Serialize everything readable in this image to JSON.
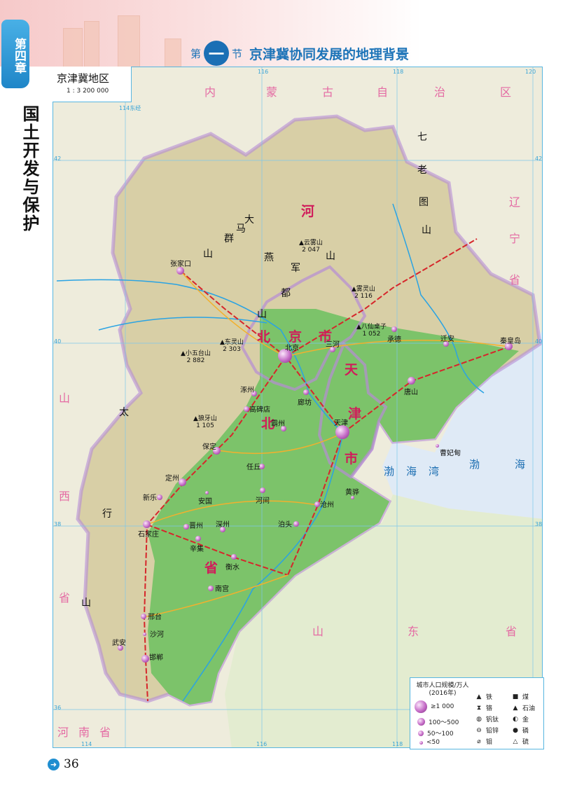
{
  "sidebar": {
    "chapter": "第四章",
    "chapter_title": "国土开发与保护"
  },
  "section": {
    "prefix": "第",
    "number": "一",
    "suffix": "节",
    "title": "京津冀协同发展的地理背景"
  },
  "map": {
    "title": "京津冀地区",
    "scale": "1 : 3 200 000",
    "colors": {
      "hebei_plain": "#7cc36a",
      "mountain": "#d8cfa6",
      "sea": "#dfeaf6",
      "outside": "#eeecdc",
      "border": "#b68cd6",
      "river": "#2aa3e3",
      "railway": "#d6262b",
      "road": "#f2b02e"
    },
    "grid_labels": {
      "lon114": "114东经",
      "lon116": "116",
      "lon118": "118",
      "lon120": "120",
      "lat42": "42",
      "lat40": "40",
      "lat38": "38",
      "lat36": "36",
      "lat42r": "42",
      "lat40r": "40",
      "lat38r": "38",
      "lat36r": "36",
      "lon114b": "114",
      "lon116b": "116",
      "lon118b": "118"
    },
    "regions": {
      "inner_mongolia": [
        "内",
        "蒙",
        "古",
        "自",
        "治",
        "区"
      ],
      "liaoning": [
        "辽",
        "宁",
        "省"
      ],
      "hebei": [
        "河",
        "北",
        "省"
      ],
      "beijing": [
        "北",
        "京",
        "市"
      ],
      "tianjin": [
        "天",
        "津",
        "市"
      ],
      "shanxi": [
        "山",
        "西",
        "省"
      ],
      "shandong": [
        "山",
        "东",
        "省"
      ],
      "henan": [
        "河",
        "南",
        "省"
      ]
    },
    "mountains": {
      "yanshan": [
        "燕",
        "山"
      ],
      "jundushan": [
        "军",
        "都",
        "山"
      ],
      "taihangshan": [
        "太",
        "行",
        "山"
      ],
      "qilaotu": [
        "七",
        "老",
        "图",
        "山"
      ],
      "damaqun": [
        "大",
        "马",
        "群",
        "山"
      ]
    },
    "seas": {
      "bohai_bay": [
        "渤",
        "海",
        "湾"
      ],
      "bohai": [
        "渤",
        "海"
      ]
    },
    "peaks": [
      {
        "name": "雾灵山",
        "elev": "2 116"
      },
      {
        "name": "八仙桌子",
        "elev": "1 052"
      },
      {
        "name": "东灵山",
        "elev": "2 303"
      },
      {
        "name": "小五台山",
        "elev": "2 882"
      },
      {
        "name": "狼牙山",
        "elev": "1 105"
      },
      {
        "name": "云雾山",
        "elev": "2 047"
      }
    ],
    "cities": [
      {
        "name": "北京",
        "tier": "≥1 000"
      },
      {
        "name": "天津",
        "tier": "≥1 000"
      },
      {
        "name": "石家庄",
        "tier": "100～500"
      },
      {
        "name": "唐山",
        "tier": "100～500"
      },
      {
        "name": "保定",
        "tier": "100～500"
      },
      {
        "name": "邯郸",
        "tier": "100～500"
      },
      {
        "name": "张家口",
        "tier": "100～500"
      },
      {
        "name": "秦皇岛",
        "tier": "100～500"
      },
      {
        "name": "定州",
        "tier": "100～500"
      },
      {
        "name": "承德",
        "tier": "50～100"
      },
      {
        "name": "迁安",
        "tier": "50～100"
      },
      {
        "name": "廊坊",
        "tier": "50～100"
      },
      {
        "name": "霸州",
        "tier": "50～100"
      },
      {
        "name": "涿州",
        "tier": "50～100"
      },
      {
        "name": "高碑店",
        "tier": "50～100"
      },
      {
        "name": "任丘",
        "tier": "50～100"
      },
      {
        "name": "新乐",
        "tier": "50～100"
      },
      {
        "name": "安国",
        "tier": "<50"
      },
      {
        "name": "河间",
        "tier": "50～100"
      },
      {
        "name": "沧州",
        "tier": "50～100"
      },
      {
        "name": "黄骅",
        "tier": "<50"
      },
      {
        "name": "泊头",
        "tier": "50～100"
      },
      {
        "name": "晋州",
        "tier": "50～100"
      },
      {
        "name": "深州",
        "tier": "50～100"
      },
      {
        "name": "辛集",
        "tier": "50～100"
      },
      {
        "name": "衡水",
        "tier": "50～100"
      },
      {
        "name": "南宫",
        "tier": "50～100"
      },
      {
        "name": "邢台",
        "tier": "50～100"
      },
      {
        "name": "沙河",
        "tier": "<50"
      },
      {
        "name": "武安",
        "tier": "50～100"
      },
      {
        "name": "三河",
        "tier": "50～100"
      },
      {
        "name": "曹妃甸",
        "tier": "<50"
      }
    ]
  },
  "legend": {
    "title": "城市人口规模/万人",
    "year": "(2016年)",
    "sizes": [
      "≥1 000",
      "100～500",
      "50～100",
      "<50"
    ],
    "minerals": [
      {
        "icon": "iron-icon",
        "glyph": "▲",
        "label": "铁"
      },
      {
        "icon": "coal-icon",
        "glyph": "■",
        "label": "煤"
      },
      {
        "icon": "chromium-icon",
        "glyph": "⧗",
        "label": "铬"
      },
      {
        "icon": "oil-icon",
        "glyph": "▲",
        "label": "石油"
      },
      {
        "icon": "vanadium-titanium-icon",
        "glyph": "◍",
        "label": "钒钛"
      },
      {
        "icon": "gold-icon",
        "glyph": "◐",
        "label": "金"
      },
      {
        "icon": "lead-zinc-icon",
        "glyph": "⊖",
        "label": "铅锌"
      },
      {
        "icon": "phosphorus-icon",
        "glyph": "●",
        "label": "磷"
      },
      {
        "icon": "molybdenum-icon",
        "glyph": "⌀",
        "label": "钼"
      },
      {
        "icon": "sulfur-icon",
        "glyph": "△",
        "label": "硫"
      }
    ]
  },
  "page": {
    "number": "36"
  }
}
